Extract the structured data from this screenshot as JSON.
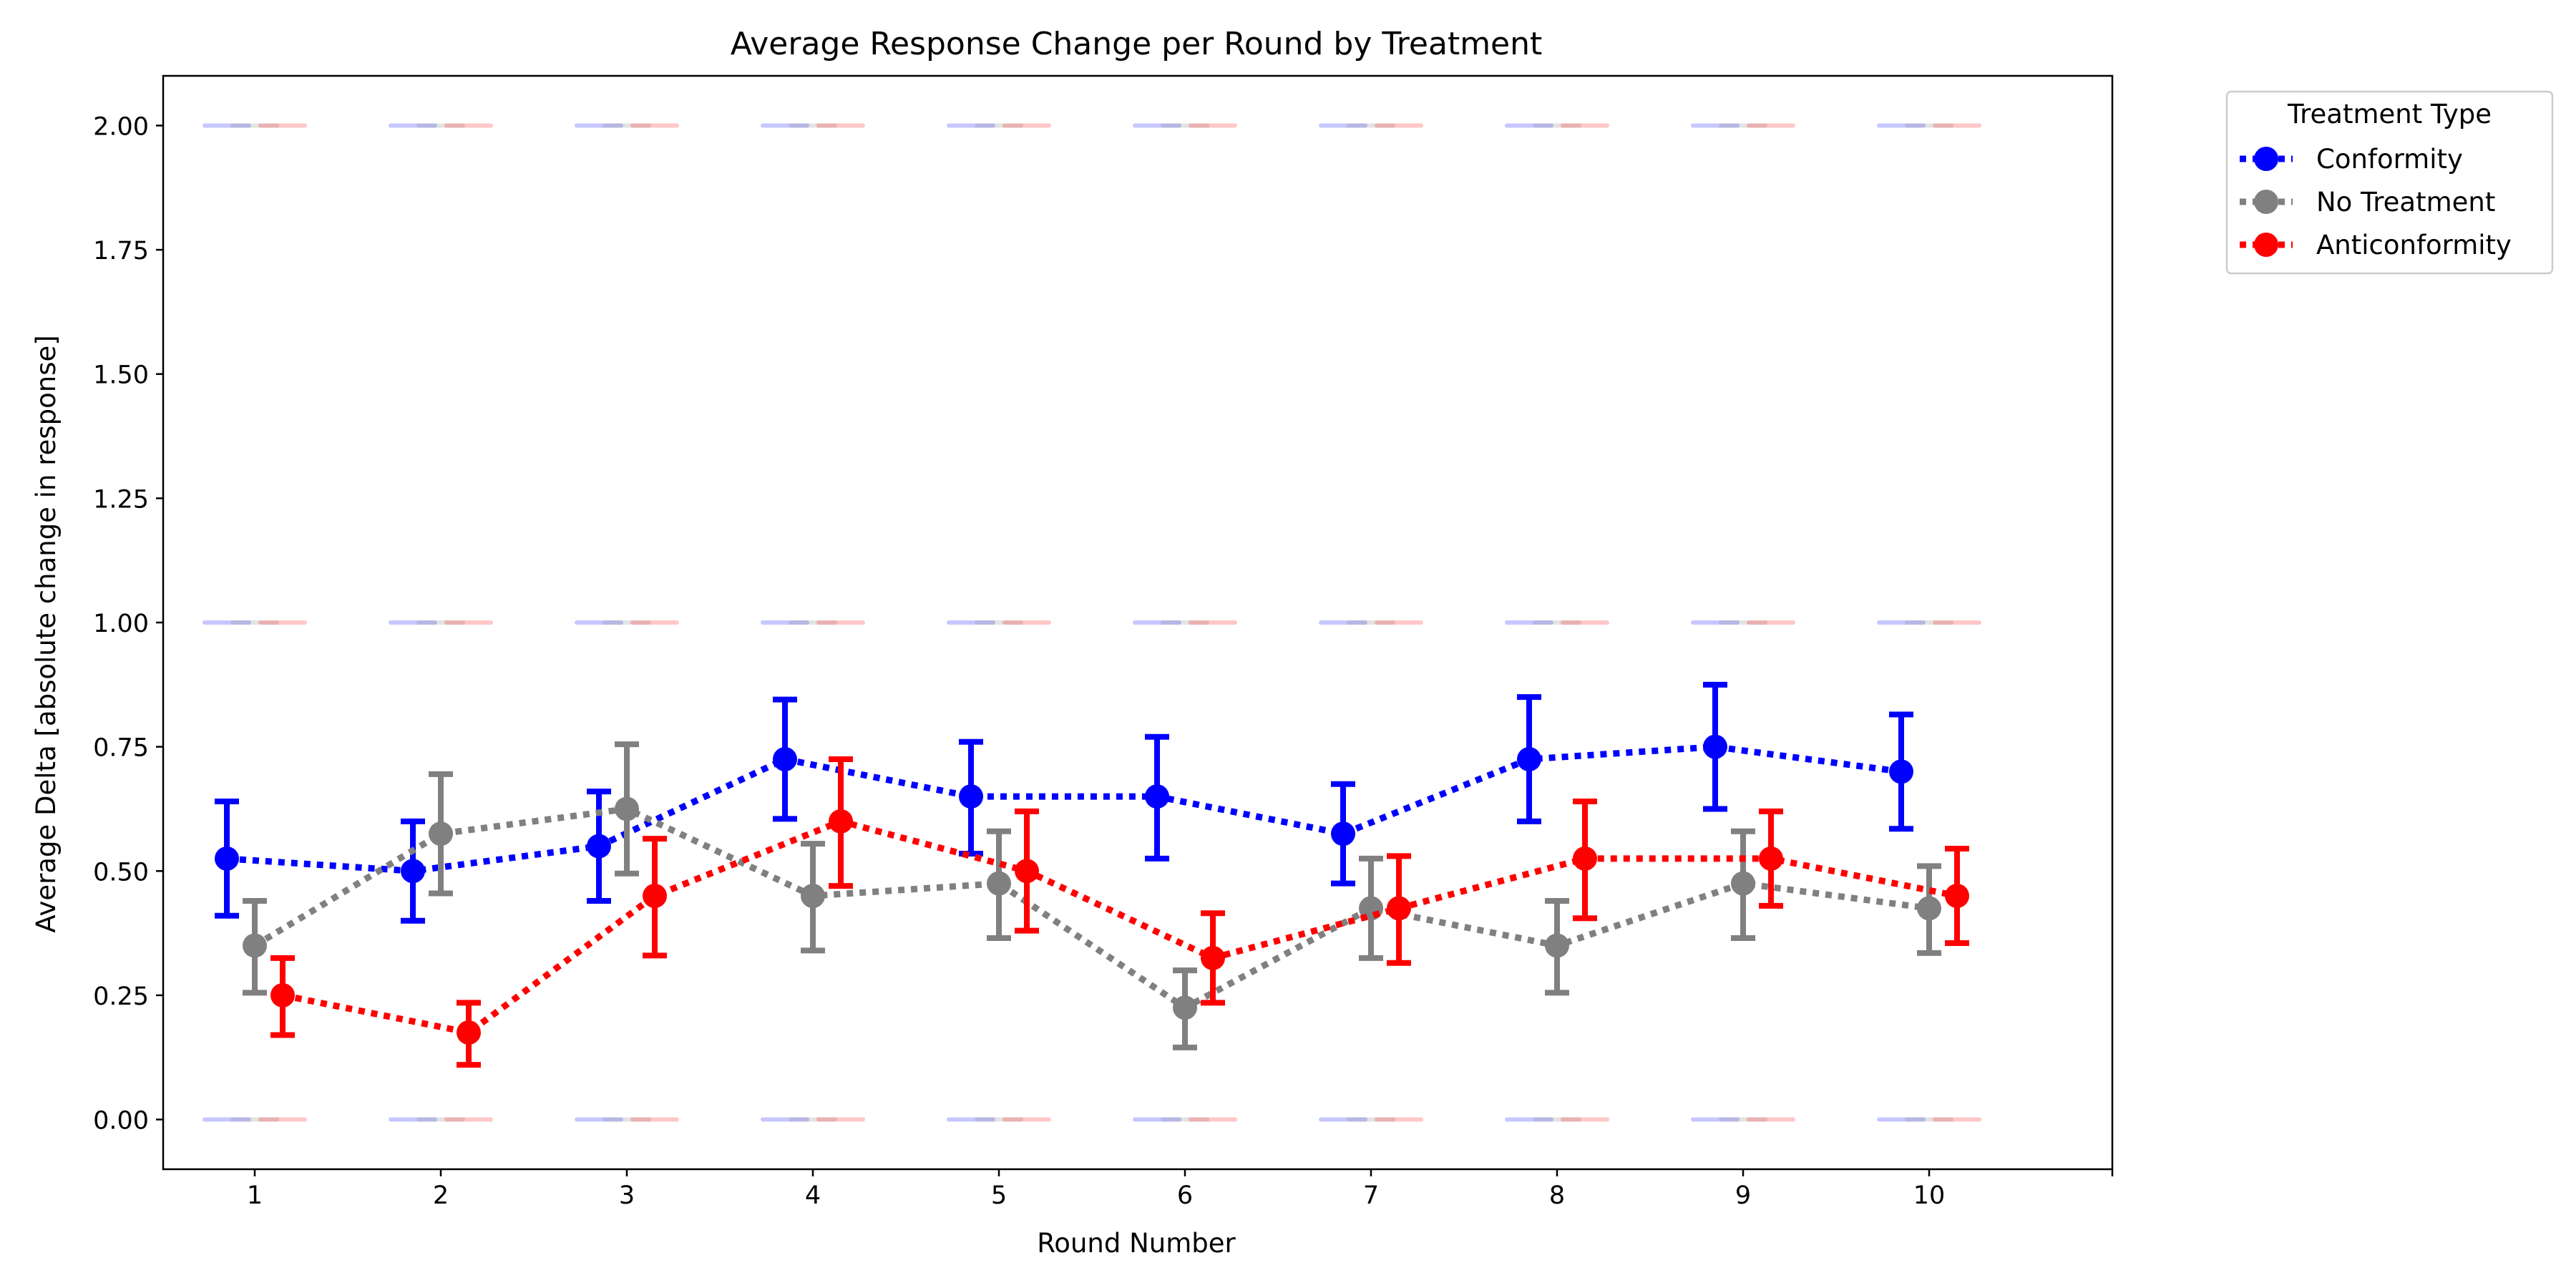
{
  "chart_data": {
    "type": "line",
    "title": "Average Response Change per Round by Treatment",
    "xlabel": "Round Number",
    "ylabel": "Average Delta [absolute change in response]",
    "x": [
      1,
      2,
      3,
      4,
      5,
      6,
      7,
      8,
      9,
      10
    ],
    "x_tick_labels": [
      "1",
      "2",
      "3",
      "4",
      "5",
      "6",
      "7",
      "8",
      "9",
      "10"
    ],
    "y_ticks": [
      "0.00",
      "0.25",
      "0.50",
      "0.75",
      "1.00",
      "1.25",
      "1.50",
      "1.75",
      "2.00"
    ],
    "ylim": [
      -0.1,
      2.1
    ],
    "legend": {
      "title": "Treatment Type",
      "placement": "outside top-right"
    },
    "series": [
      {
        "name": "Conformity",
        "color": "#0000ff",
        "values": [
          0.525,
          0.5,
          0.55,
          0.725,
          0.65,
          0.65,
          0.575,
          0.725,
          0.75,
          0.7
        ],
        "ci_low": [
          0.41,
          0.4,
          0.44,
          0.605,
          0.535,
          0.525,
          0.475,
          0.6,
          0.625,
          0.585
        ],
        "ci_high": [
          0.64,
          0.6,
          0.66,
          0.845,
          0.76,
          0.77,
          0.675,
          0.85,
          0.875,
          0.815
        ],
        "raw_levels": [
          0,
          1,
          2
        ]
      },
      {
        "name": "No Treatment",
        "color": "#808080",
        "values": [
          0.35,
          0.575,
          0.625,
          0.45,
          0.475,
          0.225,
          0.425,
          0.35,
          0.475,
          0.425
        ],
        "ci_low": [
          0.255,
          0.455,
          0.495,
          0.34,
          0.365,
          0.145,
          0.325,
          0.255,
          0.365,
          0.335
        ],
        "ci_high": [
          0.44,
          0.695,
          0.755,
          0.555,
          0.58,
          0.3,
          0.525,
          0.44,
          0.58,
          0.51
        ],
        "raw_levels": [
          0,
          1,
          2
        ]
      },
      {
        "name": "Anticonformity",
        "color": "#ff0000",
        "values": [
          0.25,
          0.175,
          0.45,
          0.6,
          0.5,
          0.325,
          0.425,
          0.525,
          0.525,
          0.45
        ],
        "ci_low": [
          0.17,
          0.11,
          0.33,
          0.47,
          0.38,
          0.235,
          0.315,
          0.405,
          0.43,
          0.355
        ],
        "ci_high": [
          0.325,
          0.235,
          0.565,
          0.725,
          0.62,
          0.415,
          0.53,
          0.64,
          0.62,
          0.545
        ],
        "raw_levels": [
          0,
          1,
          2
        ]
      }
    ]
  }
}
